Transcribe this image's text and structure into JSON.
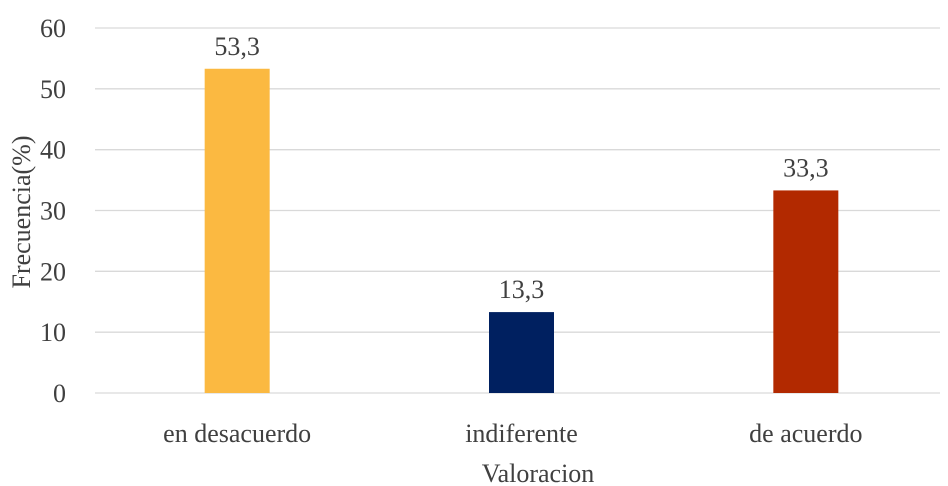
{
  "chart_data": {
    "type": "bar",
    "categories": [
      "en desacuerdo",
      "indiferente",
      "de acuerdo"
    ],
    "values": [
      53.3,
      13.3,
      33.3
    ],
    "data_labels": [
      "53,3",
      "13,3",
      "33,3"
    ],
    "colors": [
      "#fbb941",
      "#002060",
      "#b22900"
    ],
    "title": "",
    "xlabel": "Valoracion",
    "ylabel": "Frecuencia(%)",
    "ylim": [
      0,
      60
    ],
    "yticks": [
      0,
      10,
      20,
      30,
      40,
      50,
      60
    ],
    "grid": true,
    "legend": "none"
  }
}
